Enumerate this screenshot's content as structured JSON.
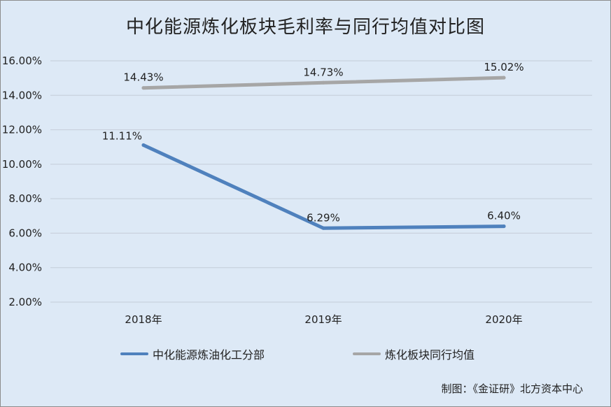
{
  "title": "中化能源炼化板块毛利率与同行均值对比图",
  "credit": "制图：《金证研》北方资本中心",
  "colors": {
    "background": "#dde9f6",
    "grid": "#c4cdd8",
    "series_company": "#4f81bd",
    "series_peer": "#a6a6a6"
  },
  "chart_data": {
    "type": "line",
    "title": "中化能源炼化板块毛利率与同行均值对比图",
    "categories": [
      "2018年",
      "2019年",
      "2020年"
    ],
    "ylim": [
      2,
      16
    ],
    "ytick_values": [
      2,
      4,
      6,
      8,
      10,
      12,
      14,
      16
    ],
    "ytick_labels": [
      "2.00%",
      "4.00%",
      "6.00%",
      "8.00%",
      "10.00%",
      "12.00%",
      "14.00%",
      "16.00%"
    ],
    "grid": true,
    "legend_position": "bottom",
    "series": [
      {
        "name": "中化能源炼油化工分部",
        "values": [
          11.11,
          6.29,
          6.4
        ],
        "labels": [
          "11.11%",
          "6.29%",
          "6.40%"
        ],
        "color": "#4f81bd"
      },
      {
        "name": "炼化板块同行均值",
        "values": [
          14.43,
          14.73,
          15.02
        ],
        "labels": [
          "14.43%",
          "14.73%",
          "15.02%"
        ],
        "color": "#a6a6a6"
      }
    ]
  }
}
